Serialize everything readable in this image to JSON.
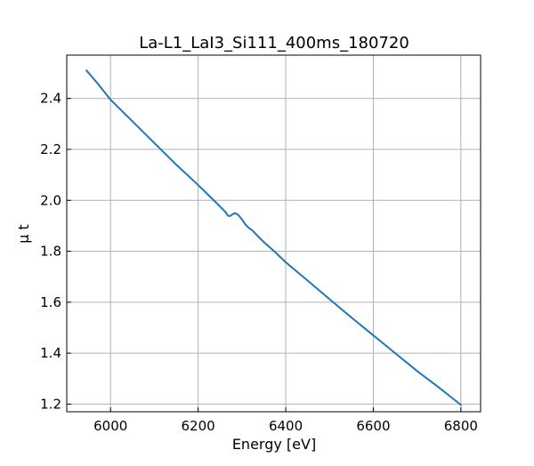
{
  "chart_data": {
    "type": "line",
    "title": "La-L1_LaI3_Si111_400ms_180720",
    "xlabel": "Energy [eV]",
    "ylabel": "μ t",
    "xlim": [
      5900,
      6845
    ],
    "ylim": [
      1.17,
      2.57
    ],
    "xticks": [
      6000,
      6200,
      6400,
      6600,
      6800
    ],
    "yticks": [
      1.2,
      1.4,
      1.6,
      1.8,
      2.0,
      2.2,
      2.4
    ],
    "ytick_labels": [
      "1.2",
      "1.4",
      "1.6",
      "1.8",
      "2.0",
      "2.2",
      "2.4"
    ],
    "grid": true,
    "ticks_direction": "in",
    "line_color": "#1f77b4",
    "series": [
      {
        "x": [
          5945,
          5970,
          6000,
          6050,
          6100,
          6150,
          6200,
          6240,
          6262,
          6268,
          6273,
          6278,
          6285,
          6292,
          6300,
          6308,
          6315,
          6325,
          6335,
          6350,
          6375,
          6400,
          6450,
          6500,
          6550,
          6600,
          6650,
          6700,
          6750,
          6800
        ],
        "y": [
          2.51,
          2.46,
          2.395,
          2.31,
          2.225,
          2.14,
          2.06,
          1.993,
          1.955,
          1.94,
          1.938,
          1.945,
          1.95,
          1.942,
          1.925,
          1.905,
          1.893,
          1.88,
          1.862,
          1.836,
          1.798,
          1.757,
          1.685,
          1.612,
          1.54,
          1.47,
          1.4,
          1.33,
          1.265,
          1.197
        ]
      }
    ]
  }
}
